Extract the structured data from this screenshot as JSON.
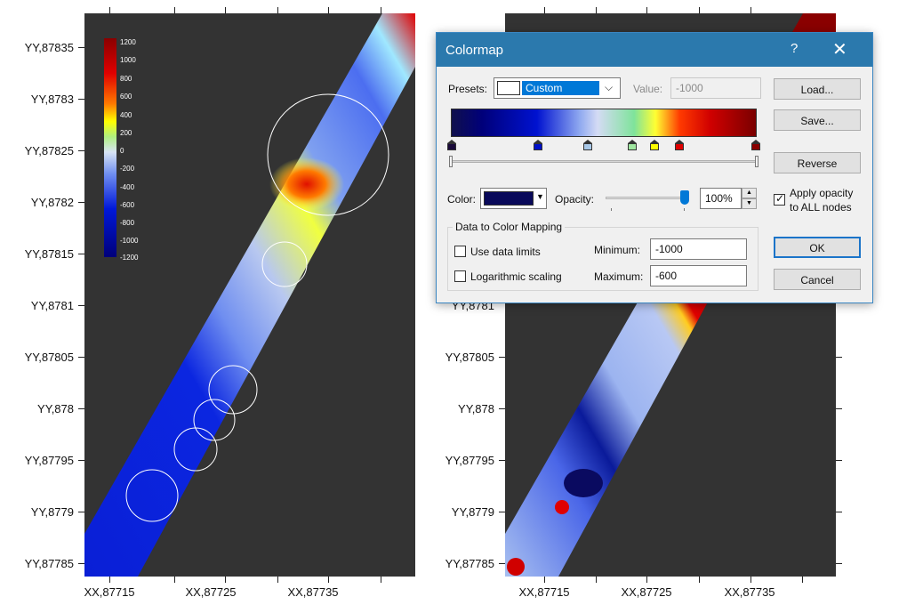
{
  "left_plot": {
    "y_ticks": [
      "YY,87835",
      "YY,8783",
      "YY,87825",
      "YY,8782",
      "YY,87815",
      "YY,8781",
      "YY,87805",
      "YY,878",
      "YY,87795",
      "YY,8779",
      "YY,87785"
    ],
    "x_ticks": [
      "XX,87715",
      "XX,87725",
      "XX,87735"
    ],
    "legend": [
      "1200",
      "1000",
      "800",
      "600",
      "400",
      "200",
      "0",
      "-200",
      "-400",
      "-600",
      "-800",
      "-1000",
      "-1200"
    ]
  },
  "right_plot": {
    "y_ticks": [
      "YY,8781",
      "YY,87805",
      "YY,878",
      "YY,87795",
      "YY,8779",
      "YY,87785"
    ],
    "x_ticks": [
      "XX,87715",
      "XX,87725",
      "XX,87735"
    ]
  },
  "dialog": {
    "title": "Colormap",
    "help": "?",
    "close": "✕",
    "presets_label": "Presets:",
    "preset_value": "Custom",
    "value_label": "Value:",
    "value_field": "-1000",
    "color_label": "Color:",
    "color_swatch": "#0a0a5a",
    "opacity_label": "Opacity:",
    "opacity_value": "100%",
    "opacity_fraction": 1.0,
    "apply_opacity_line1": "Apply opacity",
    "apply_opacity_line2": "to ALL nodes",
    "apply_opacity_checked": true,
    "mapping_group": "Data to Color Mapping",
    "use_data_limits": "Use data limits",
    "log_scaling": "Logarithmic scaling",
    "minimum_label": "Minimum:",
    "minimum_value": "-1000",
    "maximum_label": "Maximum:",
    "maximum_value": "-600",
    "buttons": {
      "load": "Load...",
      "save": "Save...",
      "reverse": "Reverse",
      "ok": "OK",
      "cancel": "Cancel"
    },
    "stop_colors": [
      "#1a0a3a",
      "#0010c8",
      "#a8c8e8",
      "#9fe6a0",
      "#ffff00",
      "#e00000",
      "#8a0000"
    ]
  }
}
